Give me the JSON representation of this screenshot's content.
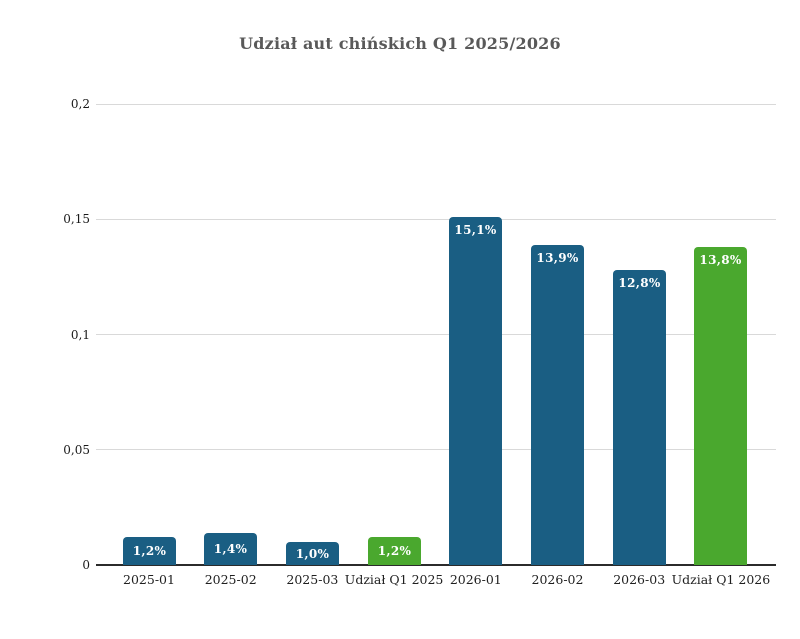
{
  "title": "Udział aut chińskich Q1 2025/2026",
  "colors": {
    "bar_blue": "#1a5e83",
    "bar_green": "#4aa82e",
    "gridline": "#d9d9d9",
    "axis_line": "#2b2b2b",
    "title_text": "#595959",
    "tick_text": "#1a1a1a",
    "value_text": "#ffffff",
    "background": "#ffffff"
  },
  "chart_data": {
    "type": "bar",
    "title": "Udział aut chińskich Q1 2025/2026",
    "categories": [
      "2025-01",
      "2025-02",
      "2025-03",
      "Udział Q1 2025",
      "2026-01",
      "2026-02",
      "2026-03",
      "Udział Q1 2026"
    ],
    "values": [
      0.012,
      0.014,
      0.01,
      0.012,
      0.151,
      0.139,
      0.128,
      0.138
    ],
    "value_labels": [
      "1,2%",
      "1,4%",
      "1,0%",
      "1,2%",
      "15,1%",
      "13,9%",
      "12,8%",
      "13,8%"
    ],
    "bar_color_keys": [
      "bar_blue",
      "bar_blue",
      "bar_blue",
      "bar_green",
      "bar_blue",
      "bar_blue",
      "bar_blue",
      "bar_green"
    ],
    "xlabel": "",
    "ylabel": "",
    "ylim": [
      0,
      0.2
    ],
    "yticks": [
      0,
      0.05,
      0.1,
      0.15,
      0.2
    ],
    "ytick_labels": [
      "0",
      "0,05",
      "0,1",
      "0,15",
      "0,2"
    ],
    "grid": "horizontal",
    "legend": "none"
  }
}
